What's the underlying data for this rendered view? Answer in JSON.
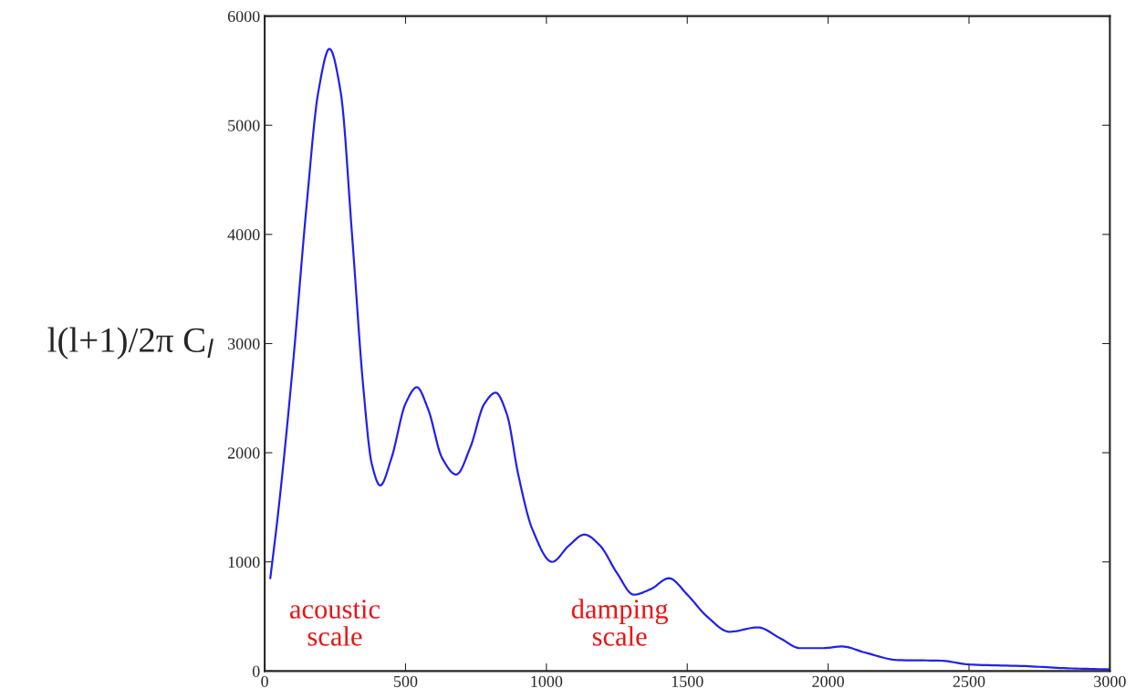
{
  "chart_data": {
    "type": "line",
    "ylabel": "l(l+1)/2π C$_{l}$",
    "x": [
      20,
      50,
      100,
      150,
      190,
      230,
      270,
      310,
      350,
      380,
      410,
      450,
      500,
      540,
      580,
      630,
      680,
      730,
      780,
      820,
      860,
      900,
      950,
      1020,
      1080,
      1135,
      1190,
      1250,
      1310,
      1370,
      1435,
      1500,
      1570,
      1650,
      1750,
      1830,
      1900,
      1980,
      2050,
      2130,
      2250,
      2400,
      2500,
      2700,
      2850,
      3000
    ],
    "series": [
      {
        "color": "#2020f0",
        "values": [
          850,
          1500,
          2800,
          4300,
          5300,
          5700,
          5300,
          4000,
          2600,
          1900,
          1700,
          1950,
          2450,
          2600,
          2400,
          1950,
          1800,
          2050,
          2450,
          2550,
          2350,
          1800,
          1300,
          1000,
          1150,
          1250,
          1150,
          900,
          700,
          750,
          850,
          700,
          500,
          360,
          400,
          300,
          210,
          210,
          225,
          170,
          100,
          95,
          60,
          45,
          25,
          15
        ]
      }
    ],
    "xlim": [
      0,
      3000
    ],
    "xticks": [
      0,
      500,
      1000,
      1500,
      2000,
      2500,
      3000
    ],
    "ylim": [
      0,
      6000
    ],
    "yticks": [
      0,
      1000,
      2000,
      3000,
      4000,
      5000,
      6000
    ],
    "grid": false,
    "legend": false,
    "annotations": [
      "acoustic\nscale",
      "damping\nscale"
    ]
  }
}
